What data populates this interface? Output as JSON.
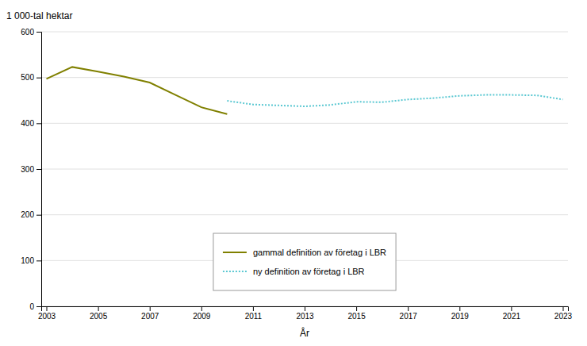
{
  "chart_data": {
    "type": "line",
    "xlabel": "År",
    "ylabel": "1 000-tal hektar",
    "xlim": [
      2002.8,
      2023.2
    ],
    "xticks": [
      2003,
      2005,
      2007,
      2009,
      2011,
      2013,
      2015,
      2017,
      2019,
      2021,
      2023
    ],
    "ylim": [
      0,
      600
    ],
    "yticks": [
      0,
      100,
      200,
      300,
      400,
      500,
      600
    ],
    "grid": true,
    "legend": "bottom",
    "series": [
      {
        "name": "gammal definition av företag i LBR",
        "color": "#808000",
        "line_style": "solid",
        "x": [
          2003,
          2004,
          2005,
          2006,
          2007,
          2008,
          2009,
          2010
        ],
        "values": [
          497,
          523,
          513,
          502,
          489,
          462,
          435,
          420
        ]
      },
      {
        "name": "ny definition av företag i LBR",
        "color": "#5bc8d2",
        "line_style": "dotted",
        "x": [
          2010,
          2011,
          2012,
          2013,
          2014,
          2015,
          2016,
          2017,
          2018,
          2019,
          2020,
          2021,
          2022,
          2023
        ],
        "values": [
          449,
          441,
          439,
          437,
          440,
          447,
          446,
          452,
          455,
          460,
          462,
          462,
          461,
          452
        ]
      }
    ]
  }
}
